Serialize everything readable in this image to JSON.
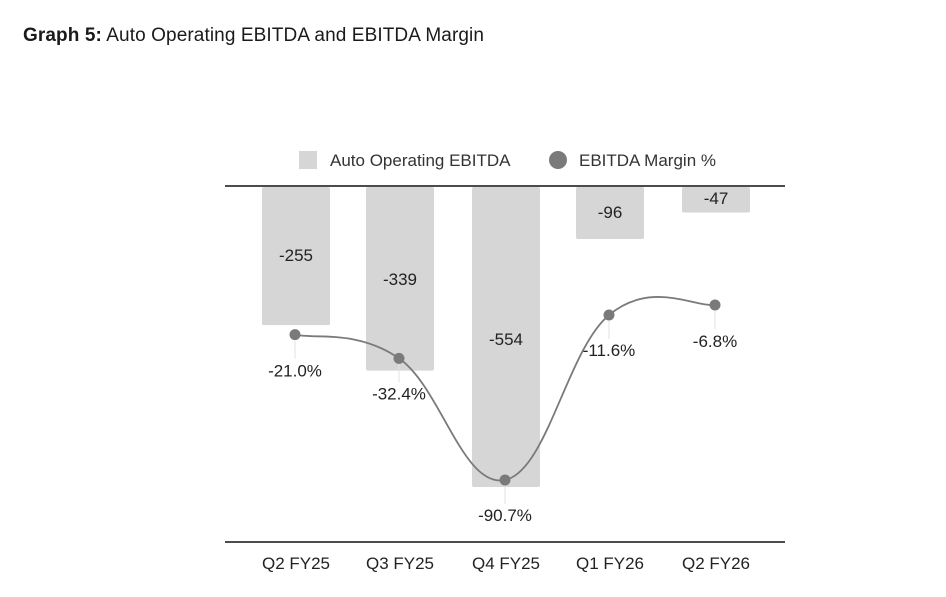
{
  "title": {
    "prefix": "Graph 5:",
    "text": "Auto Operating EBITDA and EBITDA Margin"
  },
  "chart_data": {
    "type": "bar",
    "title": "Graph 5: Auto Operating EBITDA and EBITDA Margin",
    "xlabel": "",
    "ylabel": "",
    "categories": [
      "Q2 FY25",
      "Q3 FY25",
      "Q4 FY25",
      "Q1 FY26",
      "Q2 FY26"
    ],
    "series": [
      {
        "name": "Auto Operating EBITDA",
        "type": "bar",
        "color": "#d6d6d6",
        "values": [
          -255,
          -339,
          -554,
          -96,
          -47
        ],
        "labels": [
          "-255",
          "-339",
          "-554",
          "-96",
          "-47"
        ]
      },
      {
        "name": "EBITDA Margin %",
        "type": "line",
        "color": "#7a7a7a",
        "values": [
          -21.0,
          -32.4,
          -90.7,
          -11.6,
          -6.8
        ],
        "labels": [
          "-21.0%",
          "-32.4%",
          "-90.7%",
          "-11.6%",
          "-6.8%"
        ]
      }
    ],
    "bar_ylim": [
      -600,
      0
    ],
    "line_ylim": [
      -95,
      0
    ],
    "legend": {
      "position": "top",
      "entries": [
        "Auto Operating EBITDA",
        "EBITDA Margin %"
      ]
    },
    "grid": false
  }
}
